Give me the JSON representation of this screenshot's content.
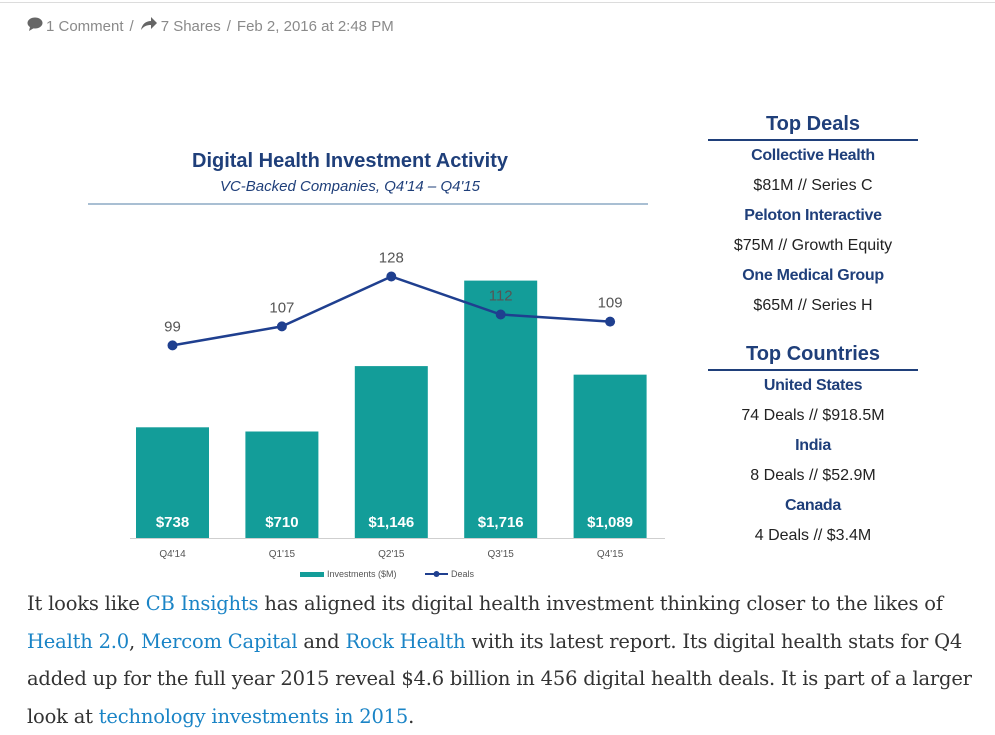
{
  "meta": {
    "comments": "1 Comment",
    "sep1": "/",
    "shares": "7 Shares",
    "sep2": "/",
    "date": "Feb 2, 2016 at 2:48 PM",
    "comment_icon": "speech-bubble-icon",
    "share_icon": "share-arrow-icon"
  },
  "chart_data": {
    "type": "bar",
    "title": "Digital Health Investment Activity",
    "subtitle": "VC-Backed Companies, Q4'14 – Q4'15",
    "categories": [
      "Q4'14",
      "Q1'15",
      "Q2'15",
      "Q3'15",
      "Q4'15"
    ],
    "series": [
      {
        "name": "Investments ($M)",
        "kind": "bar",
        "color": "#139d99",
        "values": [
          738,
          710,
          1146,
          1716,
          1089
        ],
        "labels": [
          "$738",
          "$710",
          "$1,146",
          "$1,716",
          "$1,089"
        ]
      },
      {
        "name": "Deals",
        "kind": "line",
        "color": "#1f3f8f",
        "values": [
          99,
          107,
          128,
          112,
          109
        ]
      }
    ],
    "legend": "bottom",
    "grid": false
  },
  "side": {
    "top_deals_title": "Top Deals",
    "deals": [
      {
        "name": "Collective Health",
        "detail": "$81M // Series C"
      },
      {
        "name": "Peloton Interactive",
        "detail": "$75M // Growth Equity"
      },
      {
        "name": "One Medical Group",
        "detail": "$65M // Series H"
      }
    ],
    "top_countries_title": "Top Countries",
    "countries": [
      {
        "name": "United States",
        "detail": "74 Deals // $918.5M"
      },
      {
        "name": "India",
        "detail": "8 Deals // $52.9M"
      },
      {
        "name": "Canada",
        "detail": "4 Deals // $3.4M"
      }
    ]
  },
  "paragraph": {
    "t1": "It looks like ",
    "link_cb": "CB Insights",
    "t2": " has aligned its digital health investment thinking closer to the likes of ",
    "link_h2": "Health 2.0",
    "t3": ", ",
    "link_mercom": "Mercom Capital",
    "t4": " and ",
    "link_rock": "Rock Health",
    "t5": " with its latest report. Its digital health stats for Q4 added up for the full year 2015 reveal $4.6 billion in 456 digital health deals. It is part of a larger look at ",
    "link_tech": "technology investments in 2015",
    "t6": "."
  }
}
